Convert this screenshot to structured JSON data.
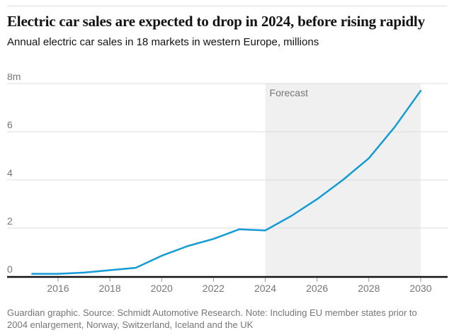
{
  "header": {
    "title": "Electric car sales are expected to drop in 2024, before rising rapidly",
    "subtitle": "Annual electric car sales in 18 markets in western Europe, millions"
  },
  "chart_data": {
    "type": "line",
    "title": "Electric car sales are expected to drop in 2024, before rising rapidly",
    "subtitle": "Annual electric car sales in 18 markets in western Europe, millions",
    "x": [
      2015,
      2016,
      2017,
      2018,
      2019,
      2020,
      2021,
      2022,
      2023,
      2024,
      2025,
      2026,
      2027,
      2028,
      2029,
      2030
    ],
    "series": [
      {
        "name": "Annual electric car sales (millions)",
        "values": [
          0.1,
          0.1,
          0.15,
          0.25,
          0.35,
          0.85,
          1.25,
          1.55,
          1.95,
          1.9,
          2.5,
          3.2,
          4.0,
          4.9,
          6.2,
          7.7
        ]
      }
    ],
    "xlabel": "",
    "ylabel": "millions",
    "ylim": [
      0,
      8
    ],
    "yticks": [
      0,
      2,
      4,
      6,
      8
    ],
    "ytick_labels": [
      "0",
      "2",
      "4",
      "6",
      "8m"
    ],
    "xticks": [
      2016,
      2018,
      2020,
      2022,
      2024,
      2026,
      2028,
      2030
    ],
    "grid": "horizontal",
    "legend_position": "none",
    "forecast_band": {
      "label": "Forecast",
      "start_year": 2024,
      "end_year": 2030
    },
    "colors": {
      "line": "#149bd6",
      "band": "#f0f0f0",
      "grid": "#dcdcdc",
      "axis": "#121212",
      "tick": "#999999",
      "labels": "#767676"
    }
  },
  "footer": {
    "credit": "Guardian graphic. Source: Schmidt Automotive Research. Note: Including EU member states prior to 2004 enlargement, Norway, Switzerland, Iceland and the UK"
  }
}
